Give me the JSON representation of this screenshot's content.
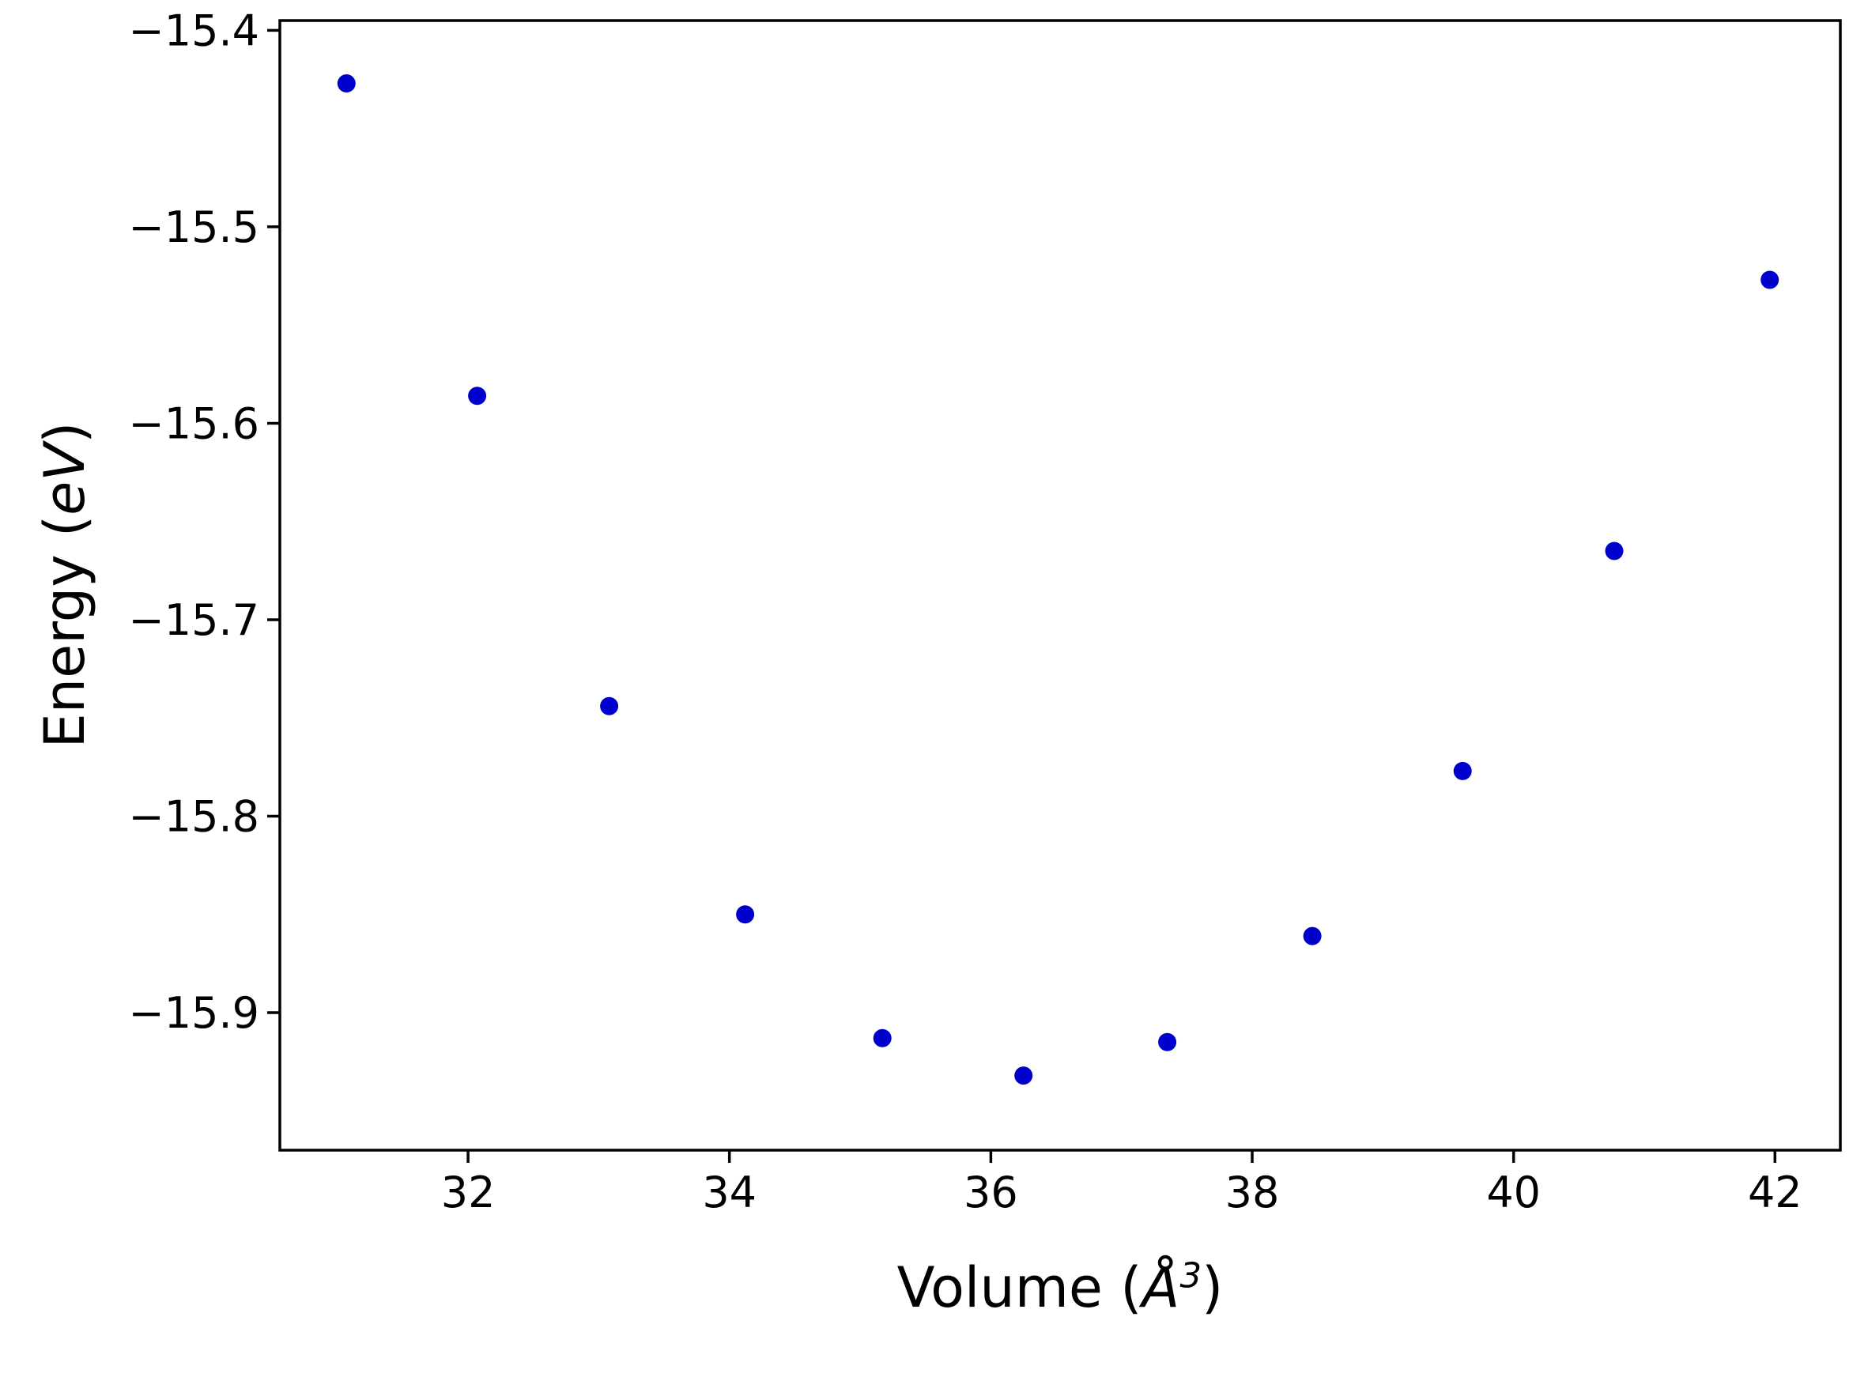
{
  "figure": {
    "background_color": "#ffffff"
  },
  "chart_data": {
    "type": "scatter",
    "title": "",
    "xlabel": "Volume (Å³)",
    "ylabel": "Energy (eV)",
    "xlabel_parts": {
      "prefix": "Volume (",
      "unit": "Å",
      "exponent": "3",
      "suffix": ")"
    },
    "ylabel_parts": {
      "prefix": "Energy (",
      "unit": "eV",
      "suffix": ")"
    },
    "x": [
      31.07,
      32.07,
      33.08,
      34.12,
      35.17,
      36.25,
      37.35,
      38.46,
      39.61,
      40.77,
      41.96
    ],
    "y": [
      -15.427,
      -15.586,
      -15.744,
      -15.85,
      -15.913,
      -15.932,
      -15.915,
      -15.861,
      -15.777,
      -15.665,
      -15.527
    ],
    "marker_color": "#0000cd",
    "line_color": "#ff0000",
    "fit": {
      "type": "polynomial",
      "degree": 3,
      "x_range": [
        31.0,
        41.97
      ]
    },
    "xlim": [
      30.56,
      42.5
    ],
    "ylim": [
      -15.97,
      -15.395
    ],
    "xtick_values": [
      32,
      34,
      36,
      38,
      40,
      42
    ],
    "xtick_labels": [
      "32",
      "34",
      "36",
      "38",
      "40",
      "42"
    ],
    "ytick_values": [
      -15.4,
      -15.5,
      -15.6,
      -15.7,
      -15.8,
      -15.9
    ],
    "ytick_labels": [
      "−15.4",
      "−15.5",
      "−15.6",
      "−15.7",
      "−15.8",
      "−15.9"
    ],
    "grid": false,
    "legend": null
  }
}
